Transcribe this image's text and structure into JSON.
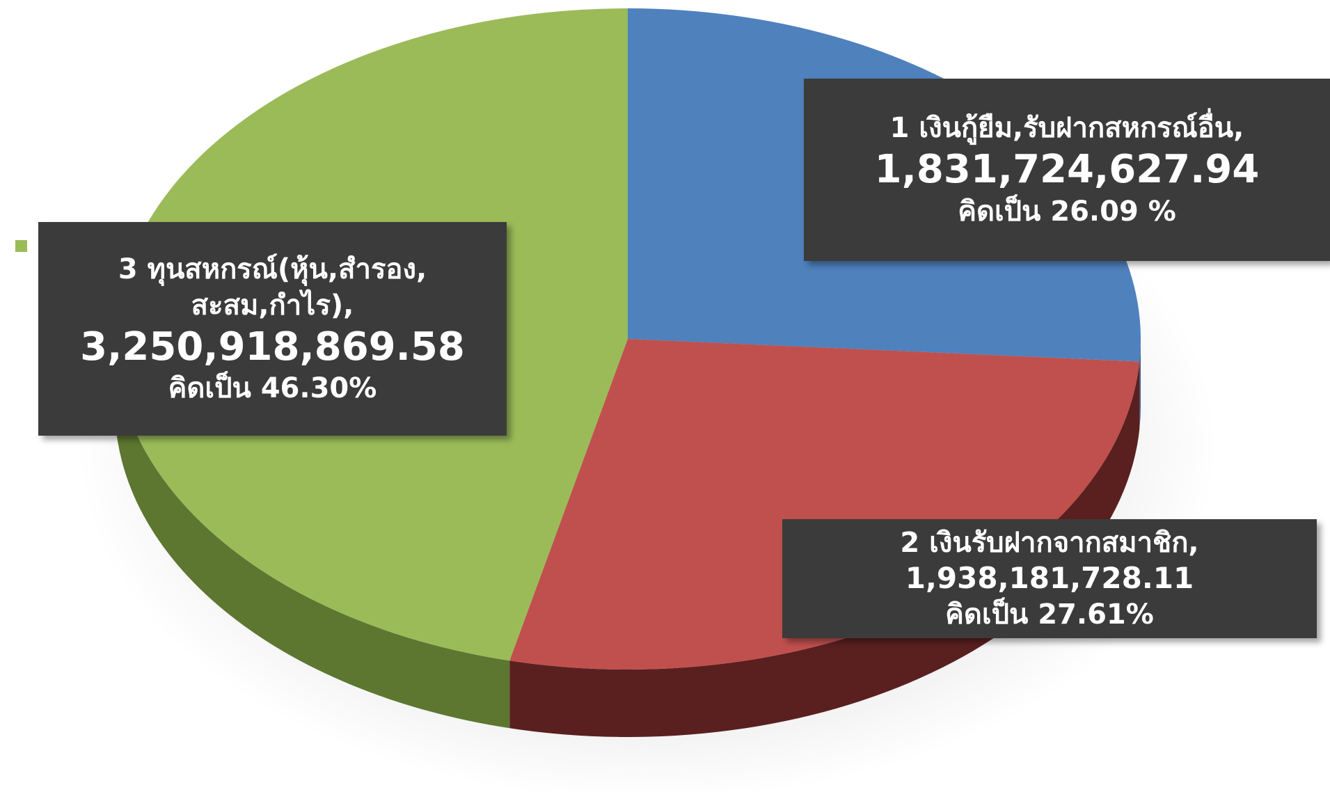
{
  "chart_data": {
    "type": "pie3d",
    "categories": [
      "1 เงินกู้ยืม,รับฝากสหกรณ์อื่น,",
      "2 เงินรับฝากจากสมาชิก,",
      "3 ทุนสหกรณ์(หุ้น,สำรอง, สะสม,กำไร),"
    ],
    "values": [
      26.09,
      27.61,
      46.3
    ],
    "value_labels": [
      "คิดเป็น 26.09 %",
      "คิดเป็น 27.61%",
      "คิดเป็น 46.30%"
    ],
    "amounts": [
      1831724627.94,
      1938181728.11,
      3250918869.58
    ],
    "amount_labels": [
      "1,831,724,627.94",
      "1,938,181,728.11",
      "3,250,918,869.58"
    ],
    "colors": [
      "#4f81bd",
      "#c0504d",
      "#9bbb59"
    ],
    "side_colors": [
      "#3a5f8c",
      "#5a201f",
      "#5d7731"
    ]
  }
}
